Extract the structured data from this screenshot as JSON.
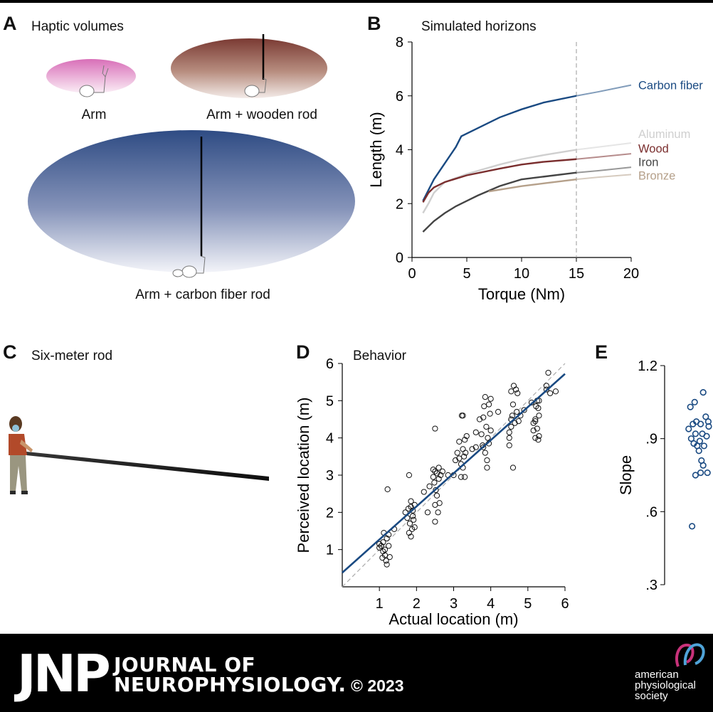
{
  "panels": {
    "A": {
      "letter": "A",
      "title": "Haptic volumes",
      "captions": [
        "Arm",
        "Arm + wooden rod",
        "Arm + carbon fiber rod"
      ]
    },
    "B": {
      "letter": "B",
      "title": "Simulated horizons"
    },
    "C": {
      "letter": "C",
      "title": "Six-meter rod"
    },
    "D": {
      "letter": "D",
      "title": "Behavior"
    },
    "E": {
      "letter": "E"
    }
  },
  "colors": {
    "carbon": "#1a4a82",
    "aluminum": "#cfcfcf",
    "wood": "#7a2e2e",
    "iron": "#444444",
    "bronze": "#b5a08a",
    "dashed": "#aaaaaa"
  },
  "chart_data": [
    {
      "type": "line",
      "xlabel": "Torque (Nm)",
      "ylabel": "Length (m)",
      "xlim": [
        0,
        20
      ],
      "ylim": [
        0,
        8
      ],
      "xticks": [
        0,
        5,
        10,
        15,
        20
      ],
      "yticks": [
        0,
        2,
        4,
        6,
        8
      ],
      "vline": 15,
      "series": [
        {
          "name": "Carbon fiber",
          "color": "#1a4a82",
          "label_y": 6.4,
          "x": [
            1,
            1.5,
            2,
            3,
            4,
            4.5,
            6,
            8,
            10,
            12,
            15
          ],
          "y": [
            2.1,
            2.5,
            2.9,
            3.5,
            4.1,
            4.5,
            4.8,
            5.2,
            5.5,
            5.75,
            6.0
          ],
          "ext_x": [
            15,
            17,
            20
          ],
          "ext_y": [
            6.0,
            6.15,
            6.4
          ]
        },
        {
          "name": "Aluminum",
          "color": "#cfcfcf",
          "label_y": 4.6,
          "x": [
            1,
            1.5,
            2,
            3,
            5,
            8,
            10,
            12,
            15
          ],
          "y": [
            1.65,
            2.0,
            2.4,
            2.8,
            3.1,
            3.45,
            3.65,
            3.8,
            4.0
          ],
          "ext_x": [
            15,
            17,
            20
          ],
          "ext_y": [
            4.0,
            4.1,
            4.25
          ]
        },
        {
          "name": "Wood",
          "color": "#7a2e2e",
          "label_y": 4.05,
          "x": [
            1,
            1.5,
            2,
            3,
            5,
            8,
            10,
            12,
            15
          ],
          "y": [
            2.05,
            2.4,
            2.6,
            2.8,
            3.05,
            3.3,
            3.45,
            3.55,
            3.65
          ],
          "ext_x": [
            15,
            17,
            20
          ],
          "ext_y": [
            3.65,
            3.73,
            3.85
          ]
        },
        {
          "name": "Iron",
          "color": "#444444",
          "label_y": 3.55,
          "x": [
            1,
            1.5,
            2,
            3,
            4,
            5,
            6,
            8,
            10,
            12,
            15
          ],
          "y": [
            0.95,
            1.15,
            1.35,
            1.65,
            1.9,
            2.1,
            2.3,
            2.65,
            2.9,
            3.0,
            3.15
          ],
          "ext_x": [
            15,
            17,
            20
          ],
          "ext_y": [
            3.15,
            3.22,
            3.35
          ]
        },
        {
          "name": "Bronze",
          "color": "#b5a08a",
          "label_y": 3.05,
          "x": [
            7,
            10,
            12,
            15
          ],
          "y": [
            2.45,
            2.65,
            2.75,
            2.9
          ],
          "ext_x": [
            15,
            17,
            20
          ],
          "ext_y": [
            2.9,
            2.98,
            3.08
          ]
        }
      ]
    },
    {
      "type": "scatter",
      "xlabel": "Actual location (m)",
      "ylabel": "Perceived location (m)",
      "xlim": [
        0,
        6
      ],
      "ylim": [
        0,
        6
      ],
      "xticks": [
        1,
        2,
        3,
        4,
        5,
        6
      ],
      "yticks": [
        1,
        2,
        3,
        4,
        5,
        6
      ],
      "fit": {
        "intercept": 0.38,
        "slope": 0.89
      },
      "points": [
        [
          1.0,
          1.05
        ],
        [
          1.05,
          1.1
        ],
        [
          1.1,
          0.95
        ],
        [
          1.1,
          1.2
        ],
        [
          1.12,
          1.45
        ],
        [
          1.15,
          0.85
        ],
        [
          1.15,
          1.0
        ],
        [
          1.18,
          0.7
        ],
        [
          1.2,
          1.3
        ],
        [
          1.2,
          0.6
        ],
        [
          1.22,
          2.62
        ],
        [
          1.25,
          1.1
        ],
        [
          1.28,
          0.8
        ],
        [
          1.0,
          1.15
        ],
        [
          1.08,
          0.78
        ],
        [
          1.25,
          1.4
        ],
        [
          1.4,
          1.55
        ],
        [
          1.7,
          2.0
        ],
        [
          1.75,
          1.85
        ],
        [
          1.78,
          2.1
        ],
        [
          1.8,
          1.45
        ],
        [
          1.8,
          3.0
        ],
        [
          1.82,
          1.7
        ],
        [
          1.85,
          1.35
        ],
        [
          1.85,
          2.3
        ],
        [
          1.88,
          1.55
        ],
        [
          1.9,
          2.05
        ],
        [
          1.92,
          1.8
        ],
        [
          1.95,
          1.6
        ],
        [
          1.95,
          2.2
        ],
        [
          1.9,
          1.9
        ],
        [
          1.85,
          2.15
        ],
        [
          2.2,
          2.55
        ],
        [
          2.3,
          2.0
        ],
        [
          2.35,
          2.7
        ],
        [
          2.45,
          2.95
        ],
        [
          2.48,
          2.8
        ],
        [
          2.5,
          3.1
        ],
        [
          2.5,
          2.2
        ],
        [
          2.5,
          1.75
        ],
        [
          2.52,
          2.6
        ],
        [
          2.55,
          3.05
        ],
        [
          2.55,
          2.45
        ],
        [
          2.58,
          2.0
        ],
        [
          2.6,
          2.9
        ],
        [
          2.6,
          3.2
        ],
        [
          2.62,
          2.25
        ],
        [
          2.5,
          4.25
        ],
        [
          2.45,
          3.15
        ],
        [
          2.65,
          3.0
        ],
        [
          2.7,
          3.1
        ],
        [
          2.85,
          3.0
        ],
        [
          3.0,
          3.0
        ],
        [
          3.05,
          3.4
        ],
        [
          3.1,
          3.6
        ],
        [
          3.15,
          3.9
        ],
        [
          3.2,
          3.3
        ],
        [
          3.2,
          2.95
        ],
        [
          3.22,
          4.6
        ],
        [
          3.25,
          3.7
        ],
        [
          3.25,
          3.2
        ],
        [
          3.28,
          3.5
        ],
        [
          3.3,
          3.95
        ],
        [
          3.3,
          2.95
        ],
        [
          3.32,
          3.6
        ],
        [
          3.35,
          4.05
        ],
        [
          3.15,
          3.45
        ],
        [
          3.25,
          4.6
        ],
        [
          3.5,
          3.7
        ],
        [
          3.6,
          3.75
        ],
        [
          3.6,
          4.15
        ],
        [
          3.7,
          4.5
        ],
        [
          3.75,
          4.1
        ],
        [
          3.78,
          3.8
        ],
        [
          3.8,
          4.55
        ],
        [
          3.82,
          4.85
        ],
        [
          3.85,
          3.6
        ],
        [
          3.85,
          5.1
        ],
        [
          3.88,
          4.3
        ],
        [
          3.9,
          3.4
        ],
        [
          3.9,
          3.2
        ],
        [
          3.92,
          4.0
        ],
        [
          3.95,
          3.85
        ],
        [
          3.95,
          4.9
        ],
        [
          3.98,
          4.65
        ],
        [
          4.0,
          5.05
        ],
        [
          3.8,
          3.75
        ],
        [
          4.0,
          4.2
        ],
        [
          4.2,
          4.7
        ],
        [
          4.5,
          4.0
        ],
        [
          4.5,
          3.8
        ],
        [
          4.55,
          4.3
        ],
        [
          4.55,
          5.25
        ],
        [
          4.58,
          4.6
        ],
        [
          4.6,
          4.9
        ],
        [
          4.6,
          3.2
        ],
        [
          4.62,
          5.4
        ],
        [
          4.65,
          4.4
        ],
        [
          4.68,
          5.3
        ],
        [
          4.7,
          4.7
        ],
        [
          4.72,
          5.2
        ],
        [
          4.75,
          4.45
        ],
        [
          4.5,
          4.15
        ],
        [
          4.55,
          4.5
        ],
        [
          4.8,
          4.6
        ],
        [
          4.9,
          4.75
        ],
        [
          5.1,
          4.95
        ],
        [
          5.15,
          4.4
        ],
        [
          5.2,
          4.5
        ],
        [
          5.2,
          4.0
        ],
        [
          5.22,
          4.85
        ],
        [
          5.25,
          5.0
        ],
        [
          5.25,
          4.25
        ],
        [
          5.28,
          3.95
        ],
        [
          5.3,
          4.05
        ],
        [
          5.3,
          4.6
        ],
        [
          5.3,
          5.0
        ],
        [
          5.15,
          4.2
        ],
        [
          5.5,
          5.4
        ],
        [
          5.5,
          5.3
        ],
        [
          5.55,
          5.75
        ],
        [
          5.6,
          5.2
        ],
        [
          5.75,
          5.25
        ],
        [
          5.2,
          4.45
        ],
        [
          5.28,
          4.8
        ]
      ]
    },
    {
      "type": "scatter",
      "ylabel": "Slope",
      "ylim": [
        0.3,
        1.2
      ],
      "yticks": [
        0.3,
        0.6,
        0.9,
        1.2
      ],
      "yticklabels": [
        ".3",
        ".6",
        ".9",
        "1.2"
      ],
      "values": [
        1.09,
        1.05,
        1.03,
        0.99,
        0.97,
        0.97,
        0.96,
        0.96,
        0.95,
        0.94,
        0.92,
        0.92,
        0.91,
        0.9,
        0.89,
        0.88,
        0.87,
        0.87,
        0.85,
        0.81,
        0.79,
        0.76,
        0.76,
        0.75,
        0.54
      ],
      "jitter": [
        0.6,
        -0.4,
        -0.9,
        0.9,
        -0.2,
        1.2,
        -0.6,
        0.3,
        1.6,
        -1.1,
        0.5,
        -0.3,
        1.0,
        -0.8,
        0.2,
        -0.5,
        0.7,
        -0.1,
        0.1,
        0.4,
        0.6,
        0.3,
        1.1,
        -0.3,
        -0.7
      ]
    }
  ],
  "footer": {
    "logo": "JNP",
    "journal_line1": "JOURNAL OF",
    "journal_line2": "NEUROPHYSIOLOGY.",
    "copyright": "© 2023",
    "publisher_line1": "american",
    "publisher_line2": "physiological",
    "publisher_line3": "society"
  }
}
